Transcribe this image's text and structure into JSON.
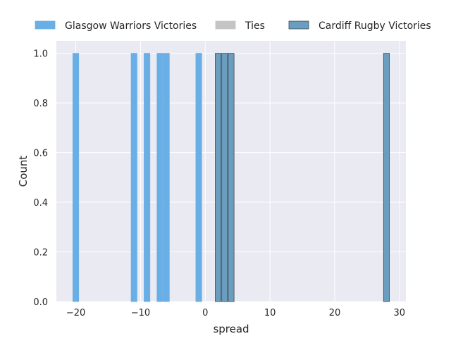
{
  "chart_data": {
    "type": "bar",
    "xlabel": "spread",
    "ylabel": "Count",
    "xlim": [
      -23,
      31
    ],
    "ylim": [
      0,
      1.05
    ],
    "grid": true,
    "legend_placement": "top",
    "x_ticks": [
      -20,
      -10,
      0,
      10,
      20,
      30
    ],
    "y_ticks": [
      0.0,
      0.2,
      0.4,
      0.6,
      0.8,
      1.0
    ],
    "x_tick_labels": [
      "−20",
      "−10",
      "0",
      "10",
      "20",
      "30"
    ],
    "y_tick_labels": [
      "0.0",
      "0.2",
      "0.4",
      "0.6",
      "0.8",
      "1.0"
    ],
    "bin_width": 0.9,
    "series": [
      {
        "name": "Glasgow Warriors Victories",
        "color": "#6aaee6",
        "edge_color": "#6aaee6",
        "x": [
          -20,
          -11,
          -9,
          -7,
          -6,
          -1
        ],
        "values": [
          1,
          1,
          1,
          1,
          1,
          1
        ]
      },
      {
        "name": "Ties",
        "color": "#c4c4c4",
        "edge_color": "#c4c4c4",
        "x": [],
        "values": []
      },
      {
        "name": "Cardiff Rugby Victories",
        "color": "#6b9dbf",
        "edge_color": "#3a4a58",
        "x": [
          2,
          3,
          4,
          28
        ],
        "values": [
          1,
          1,
          1,
          1
        ]
      }
    ]
  },
  "colors": {
    "plot_background": "#eaeaf2",
    "grid": "#ffffff",
    "text": "#262626"
  }
}
